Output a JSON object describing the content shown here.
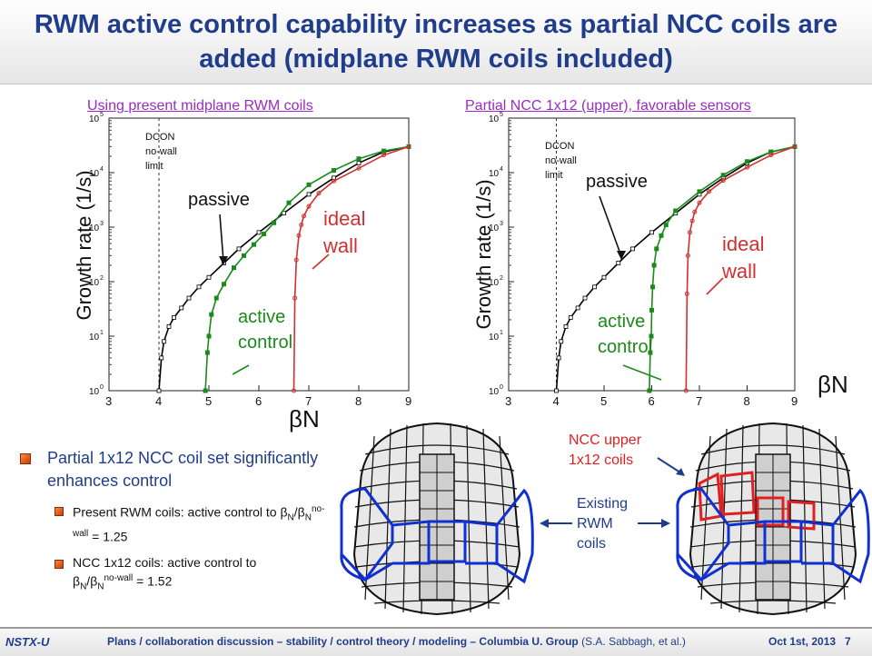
{
  "slide": {
    "title": "RWM active control capability increases as partial NCC coils are added (midplane RWM coils included)",
    "bullet_main": "Partial 1x12 NCC coil set significantly enhances control",
    "sub1_text": "Present RWM coils: active control to ",
    "sub1_value": "= 1.25",
    "sub2_text": "NCC 1x12 coils: active control to",
    "sub2_value": "= 1.52",
    "beta_ratio_num": "β",
    "beta_sub_N": "N",
    "beta_slash": "/",
    "beta_sup_nowall": "no-wall",
    "ncc_upper_label": "NCC upper",
    "ncc_coils_label": "1x12 coils",
    "existing_label_1": "Existing",
    "existing_label_2": "RWM",
    "existing_label_3": "coils"
  },
  "footer": {
    "logo": "NSTX-U",
    "text": "Plans / collaboration discussion – stability / control theory / modeling – Columbia U. Group",
    "authors": "(S.A. Sabbagh, et al.)",
    "date": "Oct 1st, 2013",
    "page": "7"
  },
  "charts": [
    {
      "title": "Using present midplane RWM coils",
      "ylabel": "Growth rate (1/s)",
      "xlabel": "βN",
      "dcon_label": [
        "DCON",
        "no-wall",
        "limit"
      ],
      "passive_label": "passive",
      "active_label": [
        "active",
        "control"
      ],
      "ideal_label": [
        "ideal",
        "wall"
      ]
    },
    {
      "title": "Partial NCC 1x12 (upper), favorable sensors",
      "ylabel": "Growth rate (1/s)",
      "xlabel": "βN",
      "dcon_label": [
        "DCON",
        "no-wall",
        "limit"
      ],
      "passive_label": "passive",
      "active_label": [
        "active",
        "control"
      ],
      "ideal_label": [
        "ideal",
        "wall"
      ]
    }
  ],
  "chart_data": [
    {
      "type": "line",
      "title": "Using present midplane RWM coils",
      "xlabel": "βN",
      "ylabel": "Growth rate (1/s)",
      "xlim": [
        3,
        9
      ],
      "ylim": [
        1,
        100000
      ],
      "log_y": true,
      "xticks": [
        3,
        4,
        5,
        6,
        7,
        8,
        9
      ],
      "yticks": [
        "10^0",
        "10^1",
        "10^2",
        "10^3",
        "10^4",
        "10^5"
      ],
      "dcon_limit": 4.0,
      "series": [
        {
          "name": "passive",
          "color": "#000000",
          "x": [
            4.0,
            4.05,
            4.1,
            4.2,
            4.3,
            4.45,
            4.6,
            4.8,
            5.0,
            5.3,
            5.6,
            6.0,
            6.5,
            7.0,
            7.5,
            8.0,
            8.5,
            9.0
          ],
          "y": [
            1,
            4,
            8,
            15,
            22,
            33,
            50,
            80,
            120,
            220,
            400,
            800,
            1800,
            4000,
            8000,
            15000,
            24000,
            30000
          ]
        },
        {
          "name": "active control",
          "color": "#1a8a1a",
          "x": [
            4.93,
            4.97,
            5.0,
            5.05,
            5.15,
            5.3,
            5.5,
            5.7,
            5.9,
            6.1,
            6.3,
            6.6,
            7.0,
            7.5,
            8.0,
            8.5,
            9.0
          ],
          "y": [
            1,
            5,
            10,
            25,
            50,
            90,
            180,
            300,
            480,
            750,
            1200,
            2800,
            6000,
            11000,
            18000,
            25000,
            30000
          ]
        },
        {
          "name": "ideal wall",
          "color": "#d03030",
          "x": [
            6.7,
            6.72,
            6.75,
            6.8,
            6.85,
            6.9,
            7.0,
            7.2,
            7.5,
            8.0,
            8.5,
            9.0
          ],
          "y": [
            1,
            50,
            250,
            700,
            1100,
            1600,
            2400,
            4200,
            7000,
            12000,
            21000,
            30000
          ]
        }
      ]
    },
    {
      "type": "line",
      "title": "Partial NCC 1x12 (upper), favorable sensors",
      "xlabel": "βN",
      "ylabel": "Growth rate (1/s)",
      "xlim": [
        3,
        9
      ],
      "ylim": [
        1,
        100000
      ],
      "log_y": true,
      "xticks": [
        3,
        4,
        5,
        6,
        7,
        8,
        9
      ],
      "yticks": [
        "10^0",
        "10^1",
        "10^2",
        "10^3",
        "10^4",
        "10^5"
      ],
      "dcon_limit": 4.0,
      "series": [
        {
          "name": "passive",
          "color": "#000000",
          "x": [
            4.0,
            4.05,
            4.1,
            4.2,
            4.3,
            4.45,
            4.6,
            4.8,
            5.0,
            5.3,
            5.6,
            6.0,
            6.5,
            7.0,
            7.5,
            8.0,
            8.5,
            9.0
          ],
          "y": [
            1,
            4,
            8,
            15,
            22,
            33,
            50,
            80,
            120,
            220,
            400,
            800,
            1800,
            4000,
            8000,
            15000,
            24000,
            30000
          ]
        },
        {
          "name": "active control",
          "color": "#1a8a1a",
          "x": [
            5.95,
            5.97,
            5.99,
            6.0,
            6.02,
            6.05,
            6.1,
            6.2,
            6.3,
            6.5,
            7.0,
            7.5,
            8.0,
            8.5,
            9.0
          ],
          "y": [
            1,
            5,
            10,
            30,
            80,
            200,
            400,
            700,
            1100,
            2000,
            4500,
            9000,
            16000,
            24000,
            30000
          ]
        },
        {
          "name": "ideal wall",
          "color": "#d03030",
          "x": [
            6.72,
            6.74,
            6.76,
            6.8,
            6.85,
            6.9,
            7.0,
            7.2,
            7.5,
            8.0,
            8.5,
            9.0
          ],
          "y": [
            1,
            60,
            300,
            800,
            1300,
            1900,
            2800,
            4500,
            7200,
            12500,
            21000,
            30000
          ]
        }
      ]
    }
  ],
  "colors": {
    "title_blue": "#1f3d8a",
    "chart_title_purple": "#9b2ac6",
    "active_green": "#1a8a1a",
    "ideal_red": "#d03030",
    "coil_blue": "#1030d0",
    "ncc_red": "#e02020"
  }
}
